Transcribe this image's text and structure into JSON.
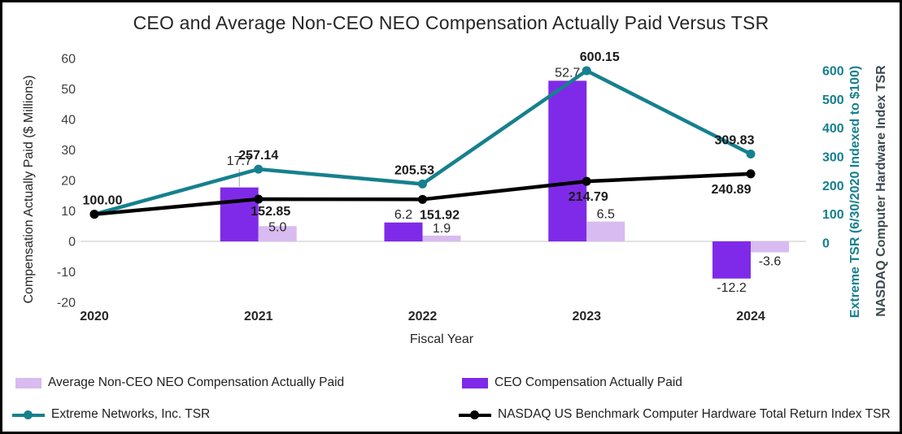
{
  "colors": {
    "ceo_bar": "#7F2AE8",
    "non_ceo_bar": "#D8BBF0",
    "extreme_line": "#16808E",
    "nasdaq_line": "#000000",
    "right_axis_title2_text": "#3E4A50",
    "zero_line": "#D9D9D9",
    "tick_text": "#3F3F3F",
    "label_text": "#1A1A1A",
    "title_text": "#262626",
    "leader_line": "#A6A6A6"
  },
  "chart_data": {
    "type": "combo-bar-line",
    "title": "CEO and Average Non-CEO NEO Compensation Actually Paid Versus TSR",
    "categories": [
      "2020",
      "2021",
      "2022",
      "2023",
      "2024"
    ],
    "xlabel": "Fiscal Year",
    "left_axis": {
      "title": "Compensation Actually Paid ($ Millions)",
      "min": -20,
      "max": 60,
      "tick_step": 10,
      "ticks": [
        60,
        50,
        40,
        30,
        20,
        10,
        0,
        -10,
        -20
      ]
    },
    "right_axis": {
      "title_line1": "Extreme TSR (6/30/2020 Indexed to $100)",
      "title_line2": "NASDAQ Computer Hardware Index TSR",
      "min": 0,
      "max": 600,
      "tick_step": 100,
      "ticks": [
        600,
        500,
        400,
        300,
        200,
        100,
        0
      ]
    },
    "grid": "zero-line-only",
    "legend_position": "bottom-two-columns",
    "series": [
      {
        "name": "CEO Compensation Actually Paid",
        "type": "bar",
        "axis": "left",
        "color_key": "ceo_bar",
        "values": [
          null,
          17.7,
          6.2,
          52.7,
          -12.2
        ],
        "labels": [
          null,
          "17.7",
          "6.2",
          "52.7",
          "-12.2"
        ]
      },
      {
        "name": "Average Non-CEO NEO Compensation Actually Paid",
        "type": "bar",
        "axis": "left",
        "color_key": "non_ceo_bar",
        "values": [
          null,
          5.0,
          1.9,
          6.5,
          -3.6
        ],
        "labels": [
          null,
          "5.0",
          "1.9",
          "6.5",
          "-3.6"
        ]
      },
      {
        "name": "Extreme Networks, Inc. TSR",
        "type": "line",
        "axis": "right",
        "color_key": "extreme_line",
        "values": [
          100.0,
          257.14,
          205.53,
          600.15,
          309.83
        ],
        "labels": [
          "100.00",
          "257.14",
          "205.53",
          "600.15",
          "309.83"
        ]
      },
      {
        "name": "NASDAQ US Benchmark Computer Hardware Total Return Index TSR",
        "type": "line",
        "axis": "right",
        "color_key": "nasdaq_line",
        "values": [
          100.0,
          152.85,
          151.92,
          214.79,
          240.89
        ],
        "labels": [
          null,
          "152.85",
          "151.92",
          "214.79",
          "240.89"
        ]
      }
    ]
  },
  "legend": {
    "items": [
      {
        "label": "Average Non-CEO NEO Compensation Actually Paid",
        "marker": "bar",
        "color_key": "non_ceo_bar"
      },
      {
        "label": "CEO Compensation Actually Paid",
        "marker": "bar",
        "color_key": "ceo_bar"
      },
      {
        "label": "Extreme Networks, Inc. TSR",
        "marker": "line",
        "color_key": "extreme_line"
      },
      {
        "label": "NASDAQ US Benchmark Computer Hardware Total Return Index TSR",
        "marker": "line",
        "color_key": "nasdaq_line"
      }
    ]
  }
}
